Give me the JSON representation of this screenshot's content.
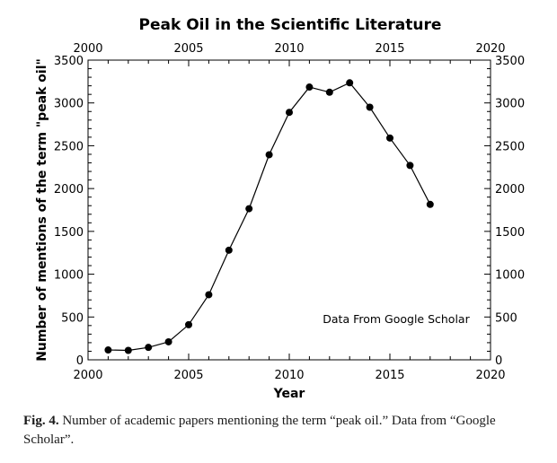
{
  "chart_data": {
    "type": "line",
    "title": "Peak Oil in the Scientific Literature",
    "xlabel": "Year",
    "ylabel": "Number of mentions of the term \"peak oil\"",
    "xlim": [
      2000,
      2020
    ],
    "ylim": [
      0,
      3500
    ],
    "x_ticks": [
      2000,
      2005,
      2010,
      2015,
      2020
    ],
    "y_ticks": [
      0,
      500,
      1000,
      1500,
      2000,
      2500,
      3000,
      3500
    ],
    "grid": false,
    "annotation": "Data From Google Scholar",
    "series": [
      {
        "x": [
          2001,
          2002,
          2003,
          2004,
          2005,
          2006,
          2007,
          2008,
          2009,
          2010,
          2011,
          2012,
          2013,
          2014,
          2015,
          2016,
          2017
        ],
        "y": [
          115,
          110,
          145,
          210,
          410,
          760,
          1280,
          1765,
          2395,
          2890,
          3185,
          3125,
          3235,
          2950,
          2590,
          2270,
          1815
        ]
      }
    ]
  },
  "caption": {
    "label": "Fig. 4.",
    "text": "Number of academic papers mentioning the term “peak oil.” Data from “Google Scholar”."
  }
}
